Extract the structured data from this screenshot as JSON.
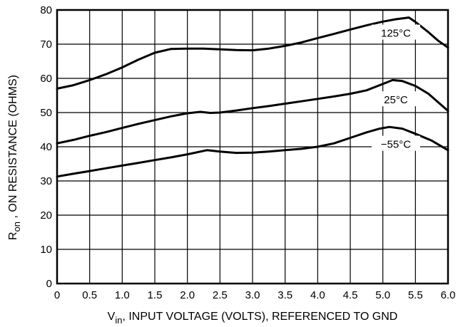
{
  "chart_data": {
    "type": "line",
    "title": "",
    "xlabel": {
      "main": "V",
      "sub": "in",
      "rest": ", INPUT VOLTAGE (VOLTS), REFERENCED TO GND"
    },
    "ylabel": {
      "main": "R",
      "sub": "on",
      "rest": " , ON RESISTANCE (OHMS)"
    },
    "xlim": [
      0,
      6.0
    ],
    "ylim": [
      0,
      80
    ],
    "xticks": [
      "0",
      "0.5",
      "1.0",
      "1.5",
      "2.0",
      "2.5",
      "3.0",
      "3.5",
      "4.0",
      "4.5",
      "5.0",
      "5.5",
      "6.0"
    ],
    "yticks": [
      "0",
      "10",
      "20",
      "30",
      "40",
      "50",
      "60",
      "70",
      "80"
    ],
    "grid": true,
    "series": [
      {
        "name": "125°C",
        "label_at": {
          "x": 5.2,
          "y": 73
        },
        "points": [
          [
            0,
            57
          ],
          [
            0.25,
            58
          ],
          [
            0.5,
            59.5
          ],
          [
            0.75,
            61.2
          ],
          [
            1.0,
            63.2
          ],
          [
            1.25,
            65.5
          ],
          [
            1.5,
            67.5
          ],
          [
            1.75,
            68.6
          ],
          [
            2.0,
            68.7
          ],
          [
            2.25,
            68.7
          ],
          [
            2.5,
            68.5
          ],
          [
            2.75,
            68.3
          ],
          [
            3.0,
            68.2
          ],
          [
            3.25,
            68.7
          ],
          [
            3.5,
            69.5
          ],
          [
            3.75,
            70.5
          ],
          [
            4.0,
            71.8
          ],
          [
            4.25,
            73.0
          ],
          [
            4.5,
            74.3
          ],
          [
            4.75,
            75.5
          ],
          [
            5.0,
            76.6
          ],
          [
            5.2,
            77.3
          ],
          [
            5.4,
            77.8
          ],
          [
            5.5,
            76.5
          ],
          [
            5.7,
            73.5
          ],
          [
            5.85,
            71
          ],
          [
            6.0,
            69
          ]
        ]
      },
      {
        "name": "25°C",
        "label_at": {
          "x": 5.2,
          "y": 53.5
        },
        "points": [
          [
            0,
            41
          ],
          [
            0.25,
            42
          ],
          [
            0.5,
            43.2
          ],
          [
            0.75,
            44.3
          ],
          [
            1.0,
            45.5
          ],
          [
            1.25,
            46.7
          ],
          [
            1.5,
            47.8
          ],
          [
            1.75,
            48.9
          ],
          [
            2.0,
            49.8
          ],
          [
            2.2,
            50.2
          ],
          [
            2.35,
            49.9
          ],
          [
            2.5,
            50.0
          ],
          [
            2.75,
            50.6
          ],
          [
            3.0,
            51.3
          ],
          [
            3.25,
            51.9
          ],
          [
            3.5,
            52.6
          ],
          [
            3.75,
            53.3
          ],
          [
            4.0,
            54.0
          ],
          [
            4.25,
            54.7
          ],
          [
            4.5,
            55.5
          ],
          [
            4.75,
            56.5
          ],
          [
            4.95,
            58
          ],
          [
            5.15,
            59.5
          ],
          [
            5.3,
            59.2
          ],
          [
            5.5,
            57.8
          ],
          [
            5.7,
            55.5
          ],
          [
            5.85,
            53
          ],
          [
            6.0,
            50.5
          ]
        ]
      },
      {
        "name": "−55°C",
        "label_at": {
          "x": 5.2,
          "y": 40.5
        },
        "points": [
          [
            0,
            31.3
          ],
          [
            0.25,
            32.1
          ],
          [
            0.5,
            32.9
          ],
          [
            0.75,
            33.7
          ],
          [
            1.0,
            34.5
          ],
          [
            1.25,
            35.3
          ],
          [
            1.5,
            36.1
          ],
          [
            1.75,
            36.9
          ],
          [
            2.0,
            37.8
          ],
          [
            2.3,
            39.0
          ],
          [
            2.5,
            38.6
          ],
          [
            2.75,
            38.2
          ],
          [
            3.0,
            38.3
          ],
          [
            3.25,
            38.6
          ],
          [
            3.5,
            39.0
          ],
          [
            3.75,
            39.4
          ],
          [
            4.0,
            40.0
          ],
          [
            4.25,
            41.0
          ],
          [
            4.5,
            42.6
          ],
          [
            4.75,
            44.2
          ],
          [
            4.95,
            45.3
          ],
          [
            5.1,
            45.8
          ],
          [
            5.3,
            45.3
          ],
          [
            5.5,
            43.8
          ],
          [
            5.75,
            41.8
          ],
          [
            6.0,
            39
          ]
        ]
      }
    ]
  }
}
